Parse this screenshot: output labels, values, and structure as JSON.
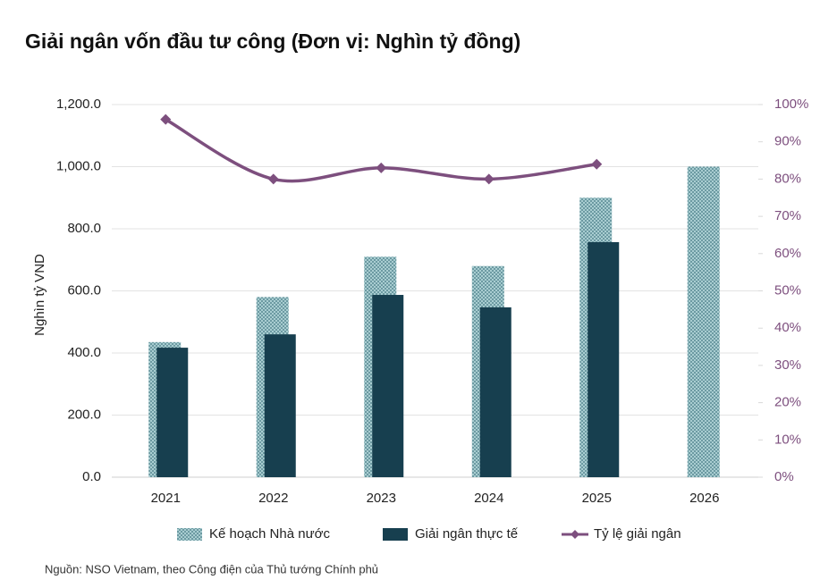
{
  "chart_data": {
    "type": "bar",
    "title": "Giải ngân vốn đầu tư công (Đơn vị: Nghìn tỷ đồng)",
    "y_label": "Nghìn tỷ VND",
    "source": "Nguồn: NSO Vietnam, theo Công điện của Thủ tướng Chính phủ",
    "categories": [
      "2021",
      "2022",
      "2023",
      "2024",
      "2025",
      "2026"
    ],
    "series": [
      {
        "name": "Kế hoạch Nhà nước",
        "color": "#8fbcc2",
        "values": [
          435,
          580,
          710,
          680,
          900,
          1000
        ]
      },
      {
        "name": "Giải ngân thực tế",
        "color": "#173f4f",
        "values": [
          417,
          460,
          587,
          547,
          757,
          null
        ]
      },
      {
        "name": "Tỷ lệ giải ngân",
        "type": "line",
        "axis": "y2",
        "color": "#7d4f7e",
        "values": [
          96,
          80,
          83,
          80,
          84,
          null
        ]
      }
    ],
    "ylim": [
      0,
      1200
    ],
    "yticks": [
      {
        "value": 0,
        "label": "0.0"
      },
      {
        "value": 200,
        "label": "200.0"
      },
      {
        "value": 400,
        "label": "400.0"
      },
      {
        "value": 600,
        "label": "600.0"
      },
      {
        "value": 800,
        "label": "800.0"
      },
      {
        "value": 1000,
        "label": "1,000.0"
      },
      {
        "value": 1200,
        "label": "1,200.0"
      }
    ],
    "y2lim": [
      0,
      100
    ],
    "y2ticks": [
      {
        "value": 0,
        "label": "0%"
      },
      {
        "value": 10,
        "label": "10%"
      },
      {
        "value": 20,
        "label": "20%"
      },
      {
        "value": 30,
        "label": "30%"
      },
      {
        "value": 40,
        "label": "40%"
      },
      {
        "value": 50,
        "label": "50%"
      },
      {
        "value": 60,
        "label": "60%"
      },
      {
        "value": 70,
        "label": "70%"
      },
      {
        "value": 80,
        "label": "80%"
      },
      {
        "value": 90,
        "label": "90%"
      },
      {
        "value": 100,
        "label": "100%"
      }
    ],
    "grid": true
  }
}
